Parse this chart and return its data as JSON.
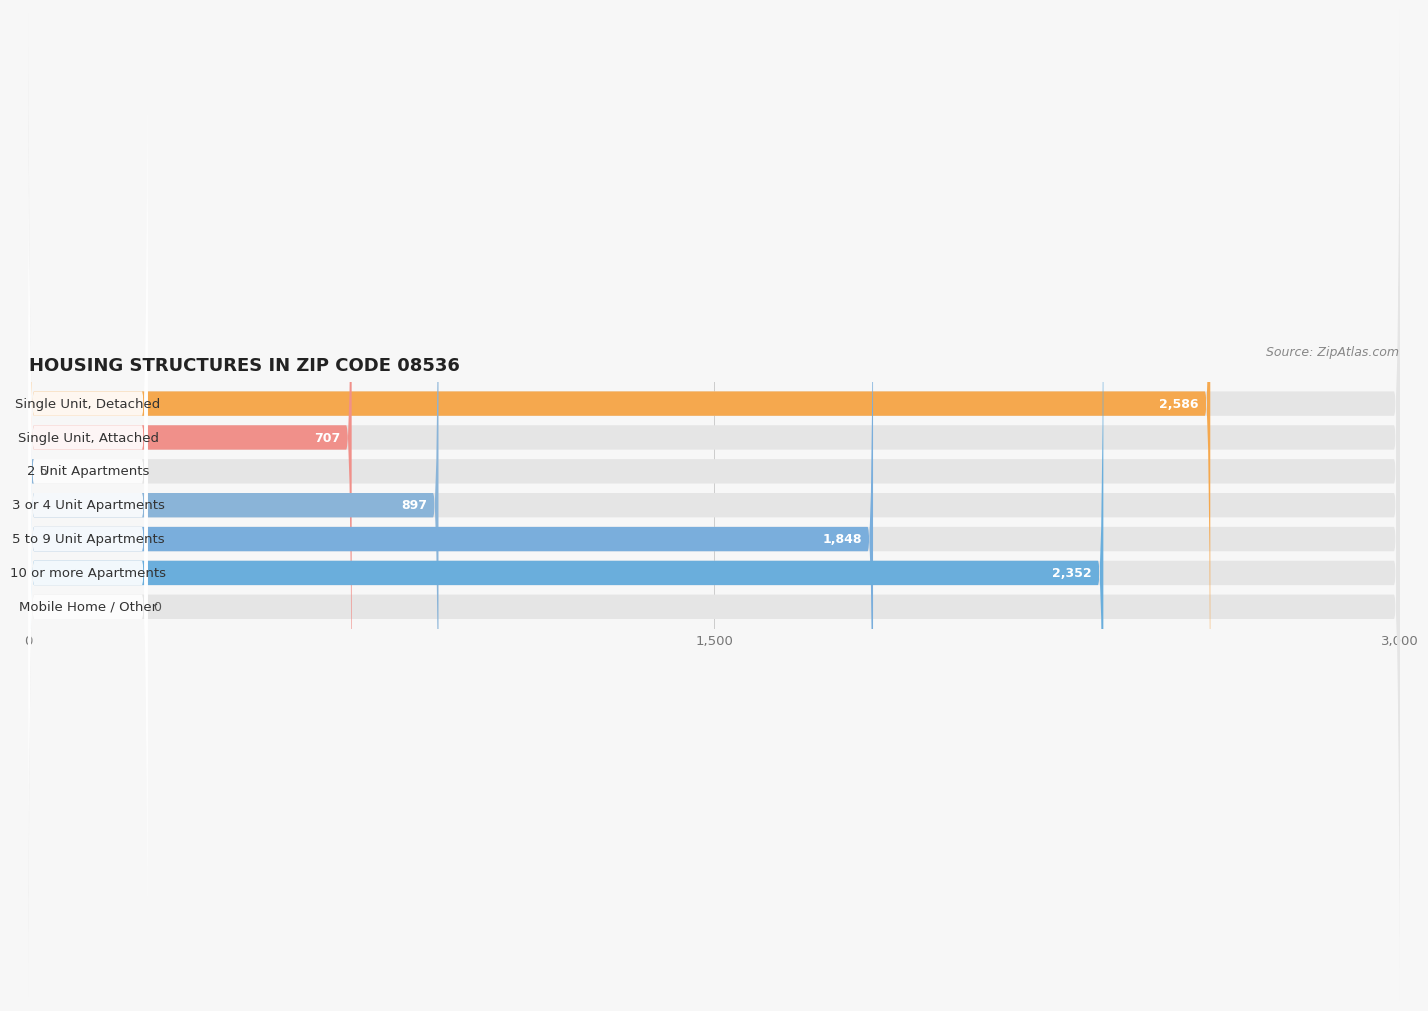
{
  "title": "HOUSING STRUCTURES IN ZIP CODE 08536",
  "source": "Source: ZipAtlas.com",
  "categories": [
    "Single Unit, Detached",
    "Single Unit, Attached",
    "2 Unit Apartments",
    "3 or 4 Unit Apartments",
    "5 to 9 Unit Apartments",
    "10 or more Apartments",
    "Mobile Home / Other"
  ],
  "values": [
    2586,
    707,
    5,
    897,
    1848,
    2352,
    0
  ],
  "bar_colors": [
    "#f5a84e",
    "#f0908a",
    "#8ab4d8",
    "#8ab4d8",
    "#7aaedc",
    "#6aaedc",
    "#c9aed0"
  ],
  "label_bg_color": "#ffffff",
  "background_color": "#f7f7f7",
  "bar_bg_color": "#e5e5e5",
  "xlim": [
    0,
    3000
  ],
  "xticks": [
    0,
    1500,
    3000
  ],
  "bar_height": 0.72,
  "title_fontsize": 13,
  "label_fontsize": 9.5,
  "value_fontsize": 9,
  "source_fontsize": 9
}
